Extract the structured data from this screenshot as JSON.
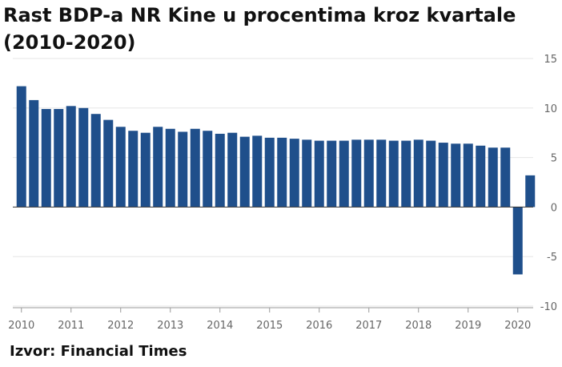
{
  "title": "Rast BDP-a NR Kine u procentima kroz kvartale (2010-2020)",
  "source": "Izvor: Financial Times",
  "colors": {
    "bar": "#1f4f8b",
    "grid": "#e6e6e6",
    "zero_line": "#333333",
    "tick_text": "#666666"
  },
  "chart_data": {
    "type": "bar",
    "title": "Rast BDP-a NR Kine u procentima kroz kvartale (2010-2020)",
    "xlabel": "",
    "ylabel": "",
    "ylim": [
      -10,
      15
    ],
    "y_ticks": [
      15,
      10,
      5,
      0,
      -5,
      -10
    ],
    "x_tick_labels": [
      "2010",
      "2011",
      "2012",
      "2013",
      "2014",
      "2015",
      "2016",
      "2017",
      "2018",
      "2019",
      "2020"
    ],
    "grid": true,
    "categories": [
      "2010 Q1",
      "2010 Q2",
      "2010 Q3",
      "2010 Q4",
      "2011 Q1",
      "2011 Q2",
      "2011 Q3",
      "2011 Q4",
      "2012 Q1",
      "2012 Q2",
      "2012 Q3",
      "2012 Q4",
      "2013 Q1",
      "2013 Q2",
      "2013 Q3",
      "2013 Q4",
      "2014 Q1",
      "2014 Q2",
      "2014 Q3",
      "2014 Q4",
      "2015 Q1",
      "2015 Q2",
      "2015 Q3",
      "2015 Q4",
      "2016 Q1",
      "2016 Q2",
      "2016 Q3",
      "2016 Q4",
      "2017 Q1",
      "2017 Q2",
      "2017 Q3",
      "2017 Q4",
      "2018 Q1",
      "2018 Q2",
      "2018 Q3",
      "2018 Q4",
      "2019 Q1",
      "2019 Q2",
      "2019 Q3",
      "2019 Q4",
      "2020 Q1",
      "2020 Q2"
    ],
    "values": [
      12.2,
      10.8,
      9.9,
      9.9,
      10.2,
      10.0,
      9.4,
      8.8,
      8.1,
      7.7,
      7.5,
      8.1,
      7.9,
      7.6,
      7.9,
      7.7,
      7.4,
      7.5,
      7.1,
      7.2,
      7.0,
      7.0,
      6.9,
      6.8,
      6.7,
      6.7,
      6.7,
      6.8,
      6.8,
      6.8,
      6.7,
      6.7,
      6.8,
      6.7,
      6.5,
      6.4,
      6.4,
      6.2,
      6.0,
      6.0,
      -6.8,
      3.2
    ]
  }
}
